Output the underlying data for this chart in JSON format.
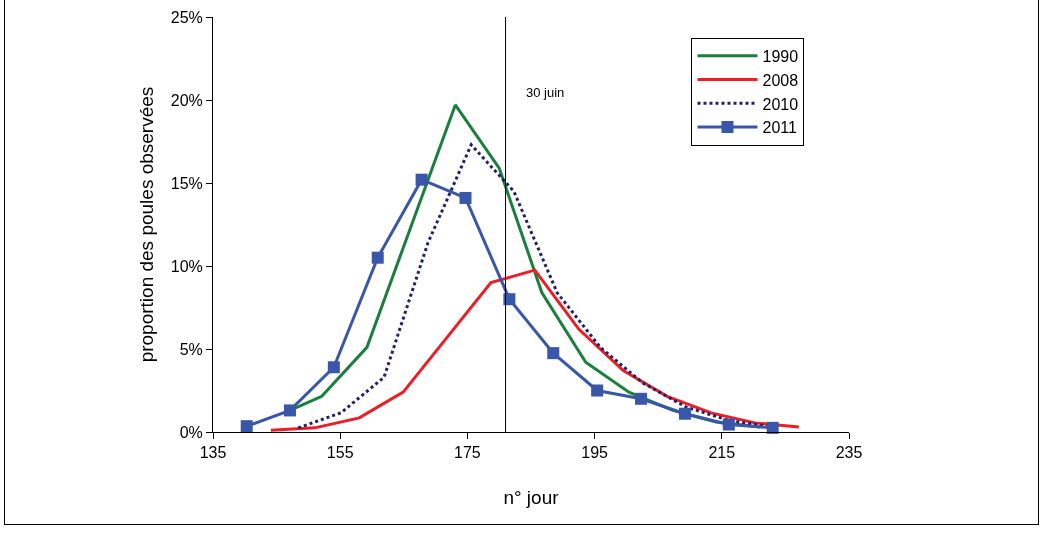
{
  "chart_data": {
    "type": "line",
    "xlabel": "n° jour",
    "ylabel": "proportion des poules observées",
    "xlim": [
      135,
      235
    ],
    "xticks": [
      135,
      155,
      175,
      195,
      215,
      235
    ],
    "ylim": [
      0,
      0.25
    ],
    "yticks": [
      {
        "value": 0,
        "label": "0%"
      },
      {
        "value": 0.05,
        "label": "5%"
      },
      {
        "value": 0.1,
        "label": "10%"
      },
      {
        "value": 0.15,
        "label": "15%"
      },
      {
        "value": 0.2,
        "label": "20%"
      },
      {
        "value": 0.25,
        "label": "25%"
      }
    ],
    "grid": false,
    "legend": "top right",
    "marker": "none",
    "line_style": "solid",
    "ref_lines": [
      {
        "axis": "x",
        "value": 181,
        "label": "30 juin",
        "color": "#000000"
      }
    ],
    "series": [
      {
        "name": "1990",
        "color": "#1a7f3c",
        "x": [
          147.1,
          152.1,
          159.2,
          173.1,
          180.0,
          186.7,
          193.6,
          200.4,
          207.3,
          214.1,
          221.0
        ],
        "values": [
          0.013,
          0.0215,
          0.051,
          0.197,
          0.159,
          0.084,
          0.042,
          0.024,
          0.013,
          0.006,
          0.003
        ]
      },
      {
        "name": "2008",
        "color": "#ee1c24",
        "x": [
          144.1,
          151.0,
          158.0,
          164.9,
          171.8,
          178.7,
          185.6,
          192.5,
          199.5,
          206.4,
          213.3,
          220.2,
          227.1
        ],
        "values": [
          0.001,
          0.0025,
          0.0085,
          0.024,
          0.057,
          0.09,
          0.0975,
          0.062,
          0.037,
          0.0215,
          0.0115,
          0.0055,
          0.003
        ]
      },
      {
        "name": "2010",
        "color": "#1f1f6e",
        "line_style": "dotted",
        "x": [
          148.4,
          155.1,
          161.9,
          168.8,
          175.6,
          182.3,
          189.1,
          195.9,
          202.6,
          209.4,
          216.1,
          222.9
        ],
        "values": [
          0.0025,
          0.0115,
          0.033,
          0.114,
          0.173,
          0.145,
          0.084,
          0.051,
          0.0295,
          0.015,
          0.007,
          0.003
        ]
      },
      {
        "name": "2011",
        "color": "#3a56a8",
        "marker": "square",
        "x": [
          140.3,
          147.1,
          154.0,
          160.9,
          167.8,
          174.7,
          181.6,
          188.5,
          195.4,
          202.3,
          209.2,
          216.1,
          223.0
        ],
        "values": [
          0.0035,
          0.013,
          0.039,
          0.105,
          0.152,
          0.141,
          0.08,
          0.0475,
          0.025,
          0.02,
          0.011,
          0.0045,
          0.0025
        ]
      }
    ]
  }
}
